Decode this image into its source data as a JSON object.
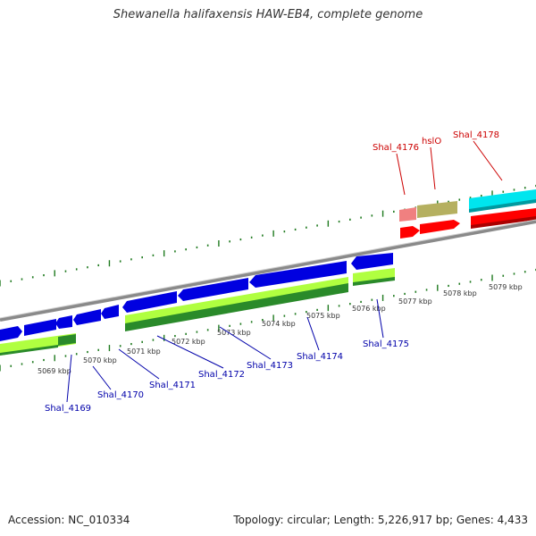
{
  "title": "Shewanella halifaxensis HAW-EB4, complete genome",
  "footer": {
    "accession": "Accession: NC_010334",
    "summary": "Topology: circular; Length: 5,226,917 bp; Genes: 4,433"
  },
  "colors": {
    "forward_cds": "#ff0000",
    "reverse_cds": "#0000e0",
    "backbone": "#8a8a8a",
    "ticks": "#1f7a1f",
    "forward_label": "#cc0000",
    "reverse_label": "#0000aa",
    "cog_cyan": "#00e5ee",
    "cog_olive": "#b5b060",
    "cog_pink": "#f08080",
    "cog_lime": "#b0ff40",
    "cog_green": "#2a8a2a"
  },
  "ticks": [
    "5069 kbp",
    "5070 kbp",
    "5071 kbp",
    "5072 kbp",
    "5073 kbp",
    "5074 kbp",
    "5075 kbp",
    "5076 kbp",
    "5077 kbp",
    "5078 kbp",
    "5079 kbp"
  ],
  "forward_genes": [
    "Shal_4176",
    "hslO",
    "Shal_4178"
  ],
  "reverse_genes": [
    "Shal_4169",
    "Shal_4170",
    "Shal_4171",
    "Shal_4172",
    "Shal_4173",
    "Shal_4174",
    "Shal_4175"
  ]
}
